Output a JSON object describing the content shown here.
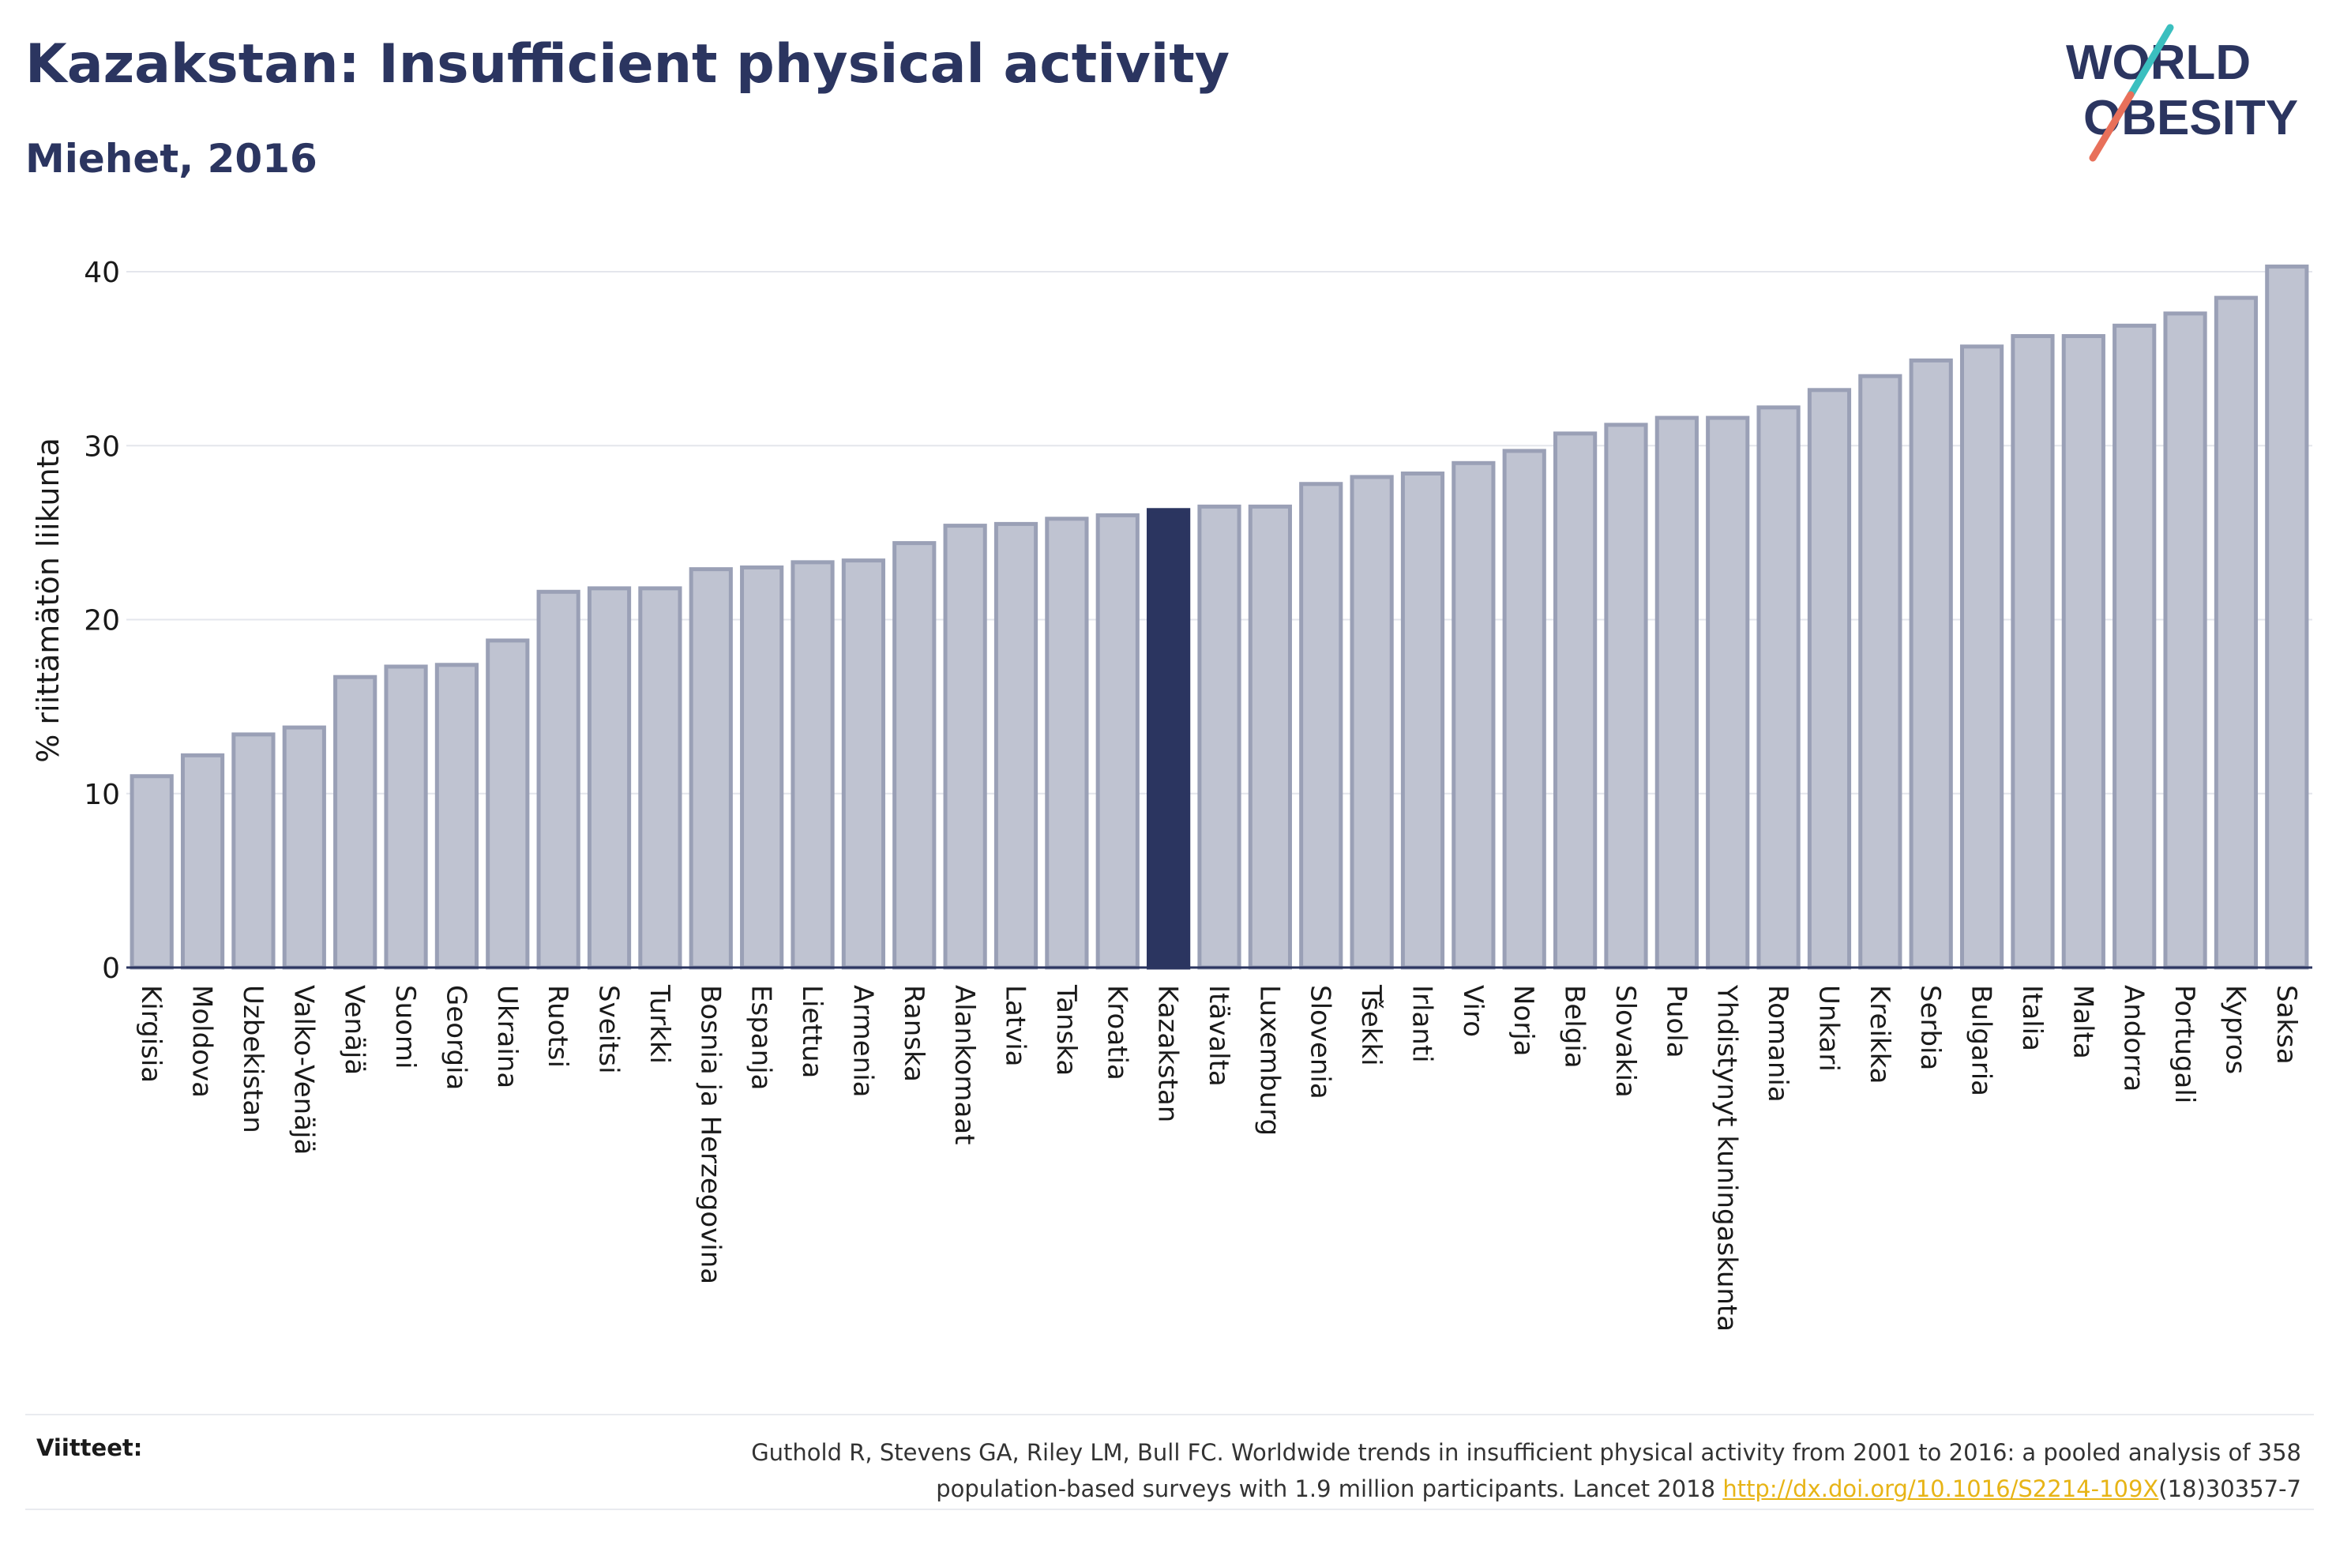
{
  "header": {
    "title": "Kazakstan: Insufficient physical activity",
    "subtitle": "Miehet, 2016"
  },
  "logo": {
    "line1": "WORLD",
    "line2": "OBESITY",
    "accent_colors": [
      "#3bbfbf",
      "#e8705a"
    ]
  },
  "chart_data": {
    "type": "bar",
    "title": "Kazakstan: Insufficient physical activity",
    "subtitle": "Miehet, 2016",
    "ylabel": "% riittämätön liikunta",
    "xlabel": "",
    "ylim": [
      0,
      42
    ],
    "yticks": [
      0,
      10,
      20,
      30,
      40
    ],
    "grid": true,
    "highlight": "Kazakstan",
    "colors": {
      "bar": "#bfc3d1",
      "bar_stroke": "#9aa0b6",
      "highlight": "#2b3560"
    },
    "categories": [
      "Kirgisia",
      "Moldova",
      "Uzbekistan",
      "Valko-Venäjä",
      "Venäjä",
      "Suomi",
      "Georgia",
      "Ukraina",
      "Ruotsi",
      "Sveitsi",
      "Turkki",
      "Bosnia ja Herzegovina",
      "Espanja",
      "Liettua",
      "Armenia",
      "Ranska",
      "Alankomaat",
      "Latvia",
      "Tanska",
      "Kroatia",
      "Kazakstan",
      "Itävalta",
      "Luxemburg",
      "Slovenia",
      "Tšekki",
      "Irlanti",
      "Viro",
      "Norja",
      "Belgia",
      "Slovakia",
      "Puola",
      "Yhdistynyt kuningaskunta",
      "Romania",
      "Unkari",
      "Kreikka",
      "Serbia",
      "Bulgaria",
      "Italia",
      "Malta",
      "Andorra",
      "Portugali",
      "Kypros",
      "Saksa"
    ],
    "values": [
      11.0,
      12.2,
      13.4,
      13.8,
      16.7,
      17.3,
      17.4,
      18.8,
      21.6,
      21.8,
      21.8,
      22.9,
      23.0,
      23.3,
      23.4,
      24.4,
      25.4,
      25.5,
      25.8,
      26.0,
      26.3,
      26.5,
      26.5,
      27.8,
      28.2,
      28.4,
      29.0,
      29.7,
      30.7,
      31.2,
      31.6,
      31.6,
      32.2,
      33.2,
      34.0,
      34.9,
      35.7,
      36.3,
      36.3,
      36.9,
      37.6,
      38.5,
      40.3
    ]
  },
  "references": {
    "label": "Viitteet:",
    "text_line1": "Guthold R, Stevens GA, Riley LM, Bull FC. Worldwide trends in insufficient physical activity from 2001 to 2016: a pooled analysis of 358",
    "text_line2_pre": "population-based surveys with 1.9 million participants. Lancet 2018 ",
    "link": "http://dx.doi.org/10.1016/S2214-109X",
    "text_line2_post": "(18)30357-7"
  }
}
